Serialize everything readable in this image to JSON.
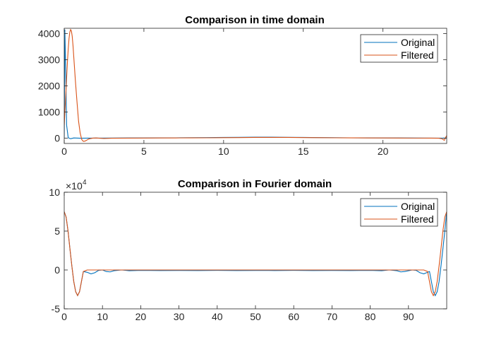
{
  "colors": {
    "original": "#0072BD",
    "filtered": "#D95319",
    "axis": "#262626",
    "background": "#ffffff"
  },
  "chart_data": [
    {
      "type": "line",
      "title": "Comparison in time domain",
      "xlabel": "",
      "ylabel": "",
      "xlim": [
        0,
        24
      ],
      "ylim": [
        -200,
        4200
      ],
      "xticks": [
        0,
        5,
        10,
        15,
        20
      ],
      "yticks": [
        0,
        1000,
        2000,
        3000,
        4000
      ],
      "exponent_label": "",
      "grid": false,
      "legend": "top-right",
      "series": [
        {
          "name": "Original",
          "color": "#0072BD",
          "x": [
            0,
            0.04,
            0.08,
            0.15,
            0.25,
            0.4,
            0.6,
            1,
            2,
            3,
            4,
            5,
            6,
            7,
            8,
            9,
            10,
            11,
            12,
            13,
            14,
            15,
            16,
            17,
            18,
            19,
            20,
            21,
            22,
            23,
            23.7,
            23.85,
            24
          ],
          "y": [
            0,
            4150,
            3000,
            500,
            20,
            -20,
            10,
            0,
            5,
            8,
            10,
            12,
            14,
            16,
            20,
            25,
            30,
            35,
            40,
            40,
            35,
            30,
            25,
            20,
            16,
            14,
            12,
            10,
            8,
            6,
            6,
            5,
            10
          ]
        },
        {
          "name": "Filtered",
          "color": "#D95319",
          "x": [
            0,
            0.05,
            0.1,
            0.15,
            0.2,
            0.25,
            0.3,
            0.35,
            0.4,
            0.45,
            0.5,
            0.55,
            0.6,
            0.7,
            0.8,
            0.9,
            1.0,
            1.1,
            1.2,
            1.3,
            1.4,
            1.5,
            1.6,
            1.8,
            2.0,
            2.2,
            2.5,
            3,
            4,
            5,
            6,
            7,
            8,
            9,
            10,
            11,
            12,
            13,
            14,
            15,
            16,
            17,
            18,
            19,
            20,
            21,
            22,
            23,
            23.5,
            23.7,
            23.85,
            23.95,
            24
          ],
          "y": [
            500,
            1100,
            1700,
            2300,
            2900,
            3400,
            3800,
            4050,
            4150,
            4100,
            3900,
            3550,
            3100,
            2200,
            1400,
            650,
            200,
            -50,
            -120,
            -110,
            -80,
            -40,
            -20,
            5,
            10,
            0,
            -10,
            0,
            5,
            8,
            10,
            12,
            14,
            16,
            20,
            25,
            30,
            32,
            30,
            25,
            20,
            16,
            14,
            12,
            10,
            8,
            6,
            5,
            0,
            -20,
            -80,
            50,
            100
          ]
        }
      ]
    },
    {
      "type": "line",
      "title": "Comparison in Fourier domain",
      "xlabel": "",
      "ylabel": "",
      "xlim": [
        0,
        100
      ],
      "ylim": [
        -50000,
        100000
      ],
      "xticks": [
        0,
        10,
        20,
        30,
        40,
        50,
        60,
        70,
        80,
        90
      ],
      "yticks": [
        -50000,
        0,
        50000,
        100000
      ],
      "ytick_labels": [
        "-5",
        "0",
        "5",
        "10"
      ],
      "exponent_label": "×10",
      "exponent_power": "4",
      "grid": false,
      "legend": "top-right",
      "series": [
        {
          "name": "Original",
          "color": "#0072BD",
          "x": [
            0,
            0.5,
            1,
            1.5,
            2,
            2.5,
            3,
            3.5,
            4,
            4.5,
            5,
            6,
            7,
            8,
            9,
            10,
            11,
            12,
            13,
            15,
            17,
            20,
            25,
            30,
            35,
            40,
            45,
            50,
            55,
            60,
            65,
            70,
            75,
            80,
            83,
            85,
            87,
            88,
            89,
            91,
            92,
            93,
            94,
            95,
            95.5,
            96,
            96.5,
            97,
            97.5,
            98,
            98.5,
            99,
            99.5,
            100
          ],
          "y": [
            75000,
            68000,
            50000,
            27000,
            5000,
            -15000,
            -28000,
            -33000,
            -28000,
            -15000,
            -2000,
            -3000,
            -5000,
            -3500,
            -500,
            0,
            -2000,
            -2500,
            -1000,
            0,
            -1000,
            -500,
            -800,
            -600,
            -700,
            -500,
            -800,
            -600,
            -700,
            -500,
            -800,
            -600,
            -700,
            -500,
            -1000,
            0,
            -1000,
            -2500,
            -2000,
            0,
            -500,
            -3500,
            -5000,
            -3000,
            -2000,
            -15000,
            -28000,
            -33000,
            -28000,
            -15000,
            5000,
            27000,
            50000,
            75000
          ]
        },
        {
          "name": "Filtered",
          "color": "#D95319",
          "x": [
            0,
            0.5,
            1,
            1.5,
            2,
            2.5,
            3,
            3.5,
            4,
            4.5,
            5,
            6,
            10,
            20,
            30,
            40,
            50,
            60,
            70,
            80,
            90,
            94,
            95,
            95.5,
            96,
            96.5,
            97,
            97.5,
            98,
            98.5,
            99,
            99.5,
            100
          ],
          "y": [
            75000,
            68000,
            50000,
            27000,
            5000,
            -15000,
            -28000,
            -33000,
            -28000,
            -15000,
            -2000,
            0,
            0,
            0,
            0,
            0,
            0,
            0,
            0,
            0,
            0,
            0,
            -2000,
            -15000,
            -28000,
            -33000,
            -28000,
            -15000,
            5000,
            27000,
            50000,
            68000,
            75000
          ]
        }
      ]
    }
  ]
}
